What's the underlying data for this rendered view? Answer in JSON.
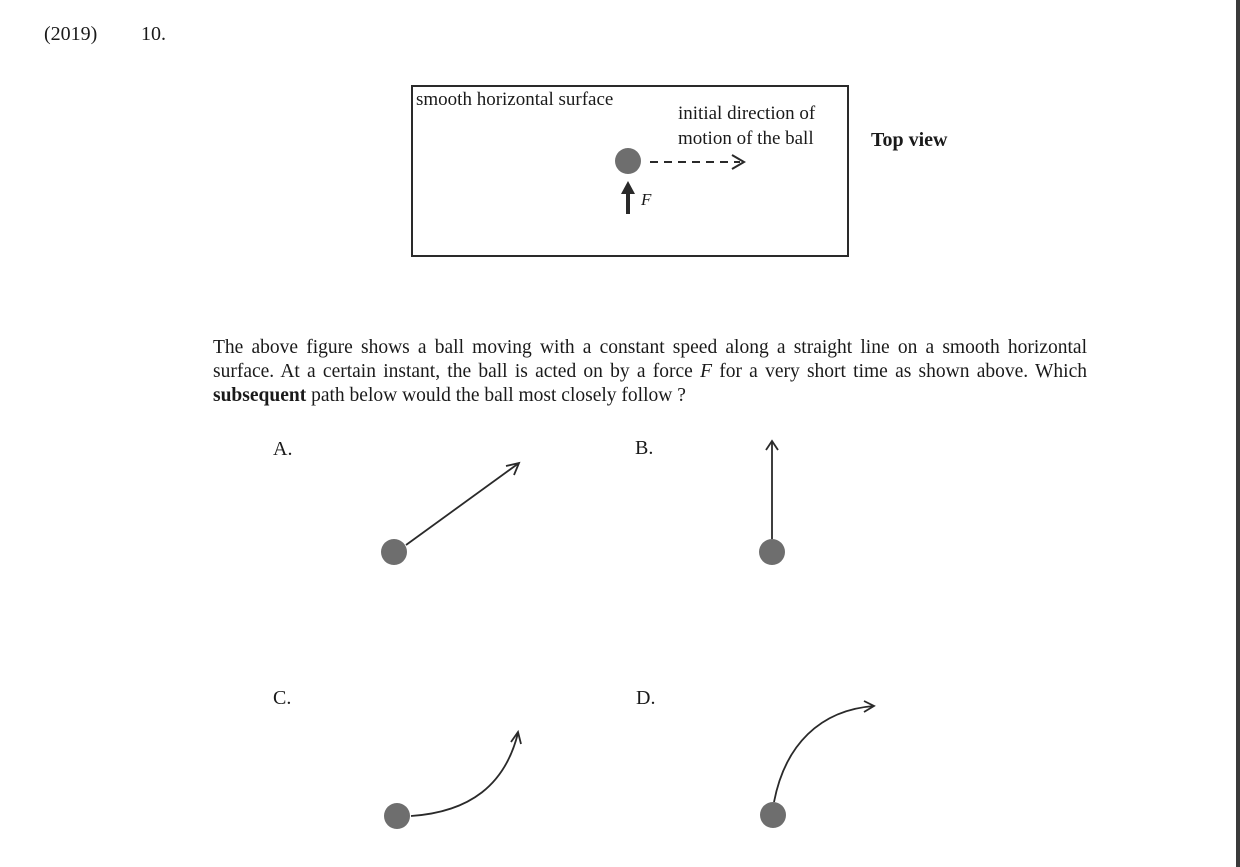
{
  "header": {
    "year": "(2019)",
    "number": "10."
  },
  "figure": {
    "surface_label": "smooth horizontal surface",
    "motion_label_line1": "initial direction of",
    "motion_label_line2": "motion of the ball",
    "view_label": "Top view",
    "force_label": "F"
  },
  "question": {
    "part1": "The above figure shows a ball moving with a constant speed along a straight line on a smooth horizontal surface.  At a certain instant, the ball is acted on by a force ",
    "force_symbol": "F",
    "part2": " for a very short time as shown above.  Which ",
    "emphasis": "subsequent",
    "part3": " path below would the ball most closely follow ?"
  },
  "options": [
    {
      "label": "A."
    },
    {
      "label": "B."
    },
    {
      "label": "C."
    },
    {
      "label": "D."
    }
  ],
  "colors": {
    "ball": "#6e6e6e",
    "line": "#2a2a2a",
    "page_border": "#3a3a3a"
  }
}
